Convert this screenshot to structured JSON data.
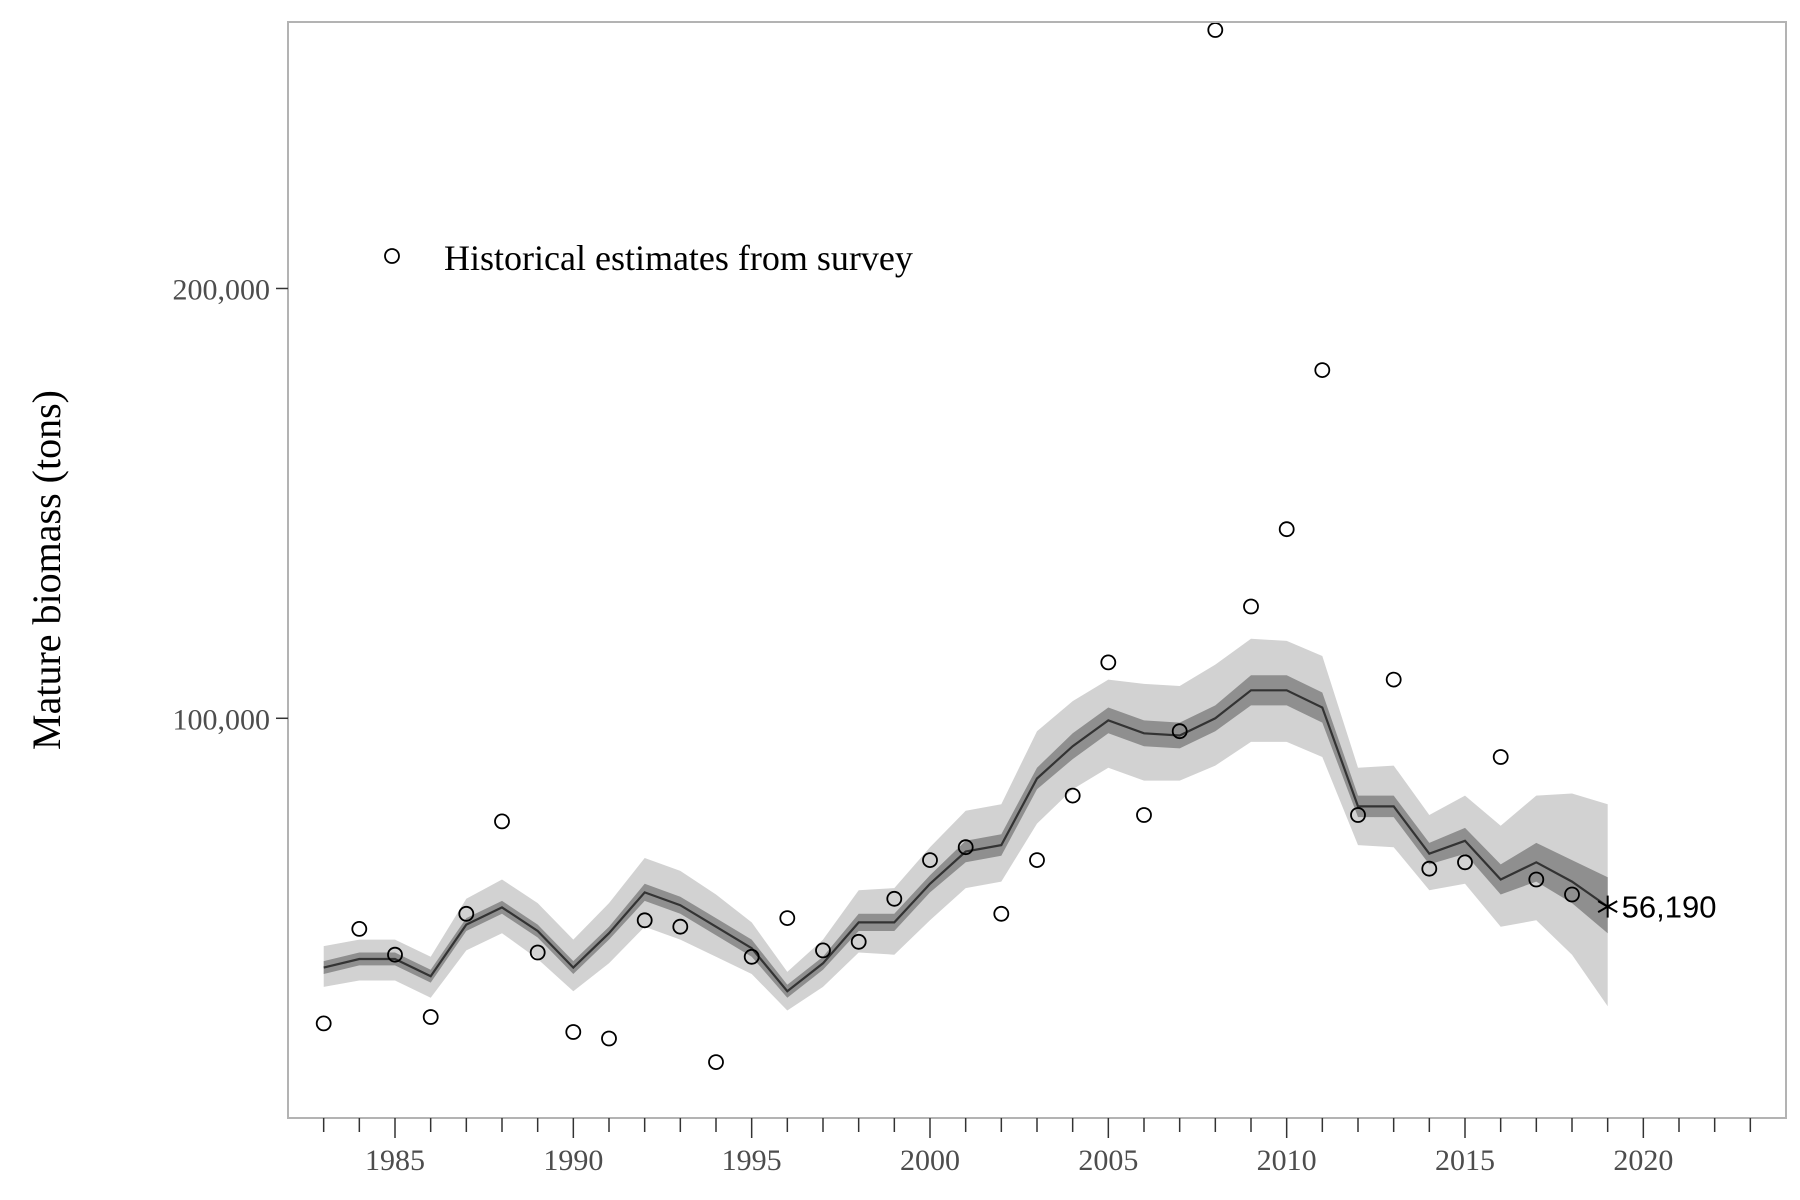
{
  "chart_data": {
    "type": "line",
    "title": "",
    "xlabel": "",
    "ylabel": "Mature biomass (tons)",
    "xlim": [
      1982,
      2024
    ],
    "ylim": [
      7000,
      262000
    ],
    "x_ticks": [
      1985,
      1990,
      1995,
      2000,
      2005,
      2010,
      2015,
      2020
    ],
    "x_tick_labels": [
      "1985",
      "1990",
      "1995",
      "2000",
      "2005",
      "2010",
      "2015",
      "2020"
    ],
    "y_ticks": [
      100000,
      200000
    ],
    "y_tick_labels": [
      "100,000",
      "200,000"
    ],
    "grid": false,
    "legend": {
      "position": "top-left",
      "entries": [
        "Historical estimates from survey"
      ]
    },
    "series": [
      {
        "name": "Historical estimates from survey",
        "kind": "scatter-open-circle",
        "x": [
          1983,
          1984,
          1985,
          1986,
          1987,
          1988,
          1989,
          1990,
          1991,
          1992,
          1993,
          1994,
          1995,
          1996,
          1997,
          1998,
          1999,
          2000,
          2001,
          2002,
          2003,
          2004,
          2005,
          2006,
          2007,
          2008,
          2009,
          2010,
          2011,
          2012,
          2013,
          2014,
          2015,
          2016,
          2017,
          2018
        ],
        "y": [
          29000,
          51000,
          45000,
          30500,
          54500,
          76000,
          45500,
          27000,
          25500,
          53000,
          51500,
          20000,
          44500,
          53500,
          46000,
          48000,
          58000,
          67000,
          70000,
          54500,
          67000,
          82000,
          113000,
          77500,
          97000,
          269000,
          126000,
          144000,
          181000,
          77500,
          109000,
          65000,
          66500,
          91000,
          62500,
          59000
        ]
      },
      {
        "name": "",
        "kind": "line",
        "x": [
          1983,
          1984,
          1985,
          1986,
          1987,
          1988,
          1989,
          1990,
          1991,
          1992,
          1993,
          1994,
          1995,
          1996,
          1997,
          1998,
          1999,
          2000,
          2001,
          2002,
          2003,
          2004,
          2005,
          2006,
          2007,
          2008,
          2009,
          2010,
          2011,
          2012,
          2013,
          2014,
          2015,
          2016,
          2017,
          2018,
          2019
        ],
        "y": [
          42000,
          44000,
          44000,
          40000,
          52000,
          56000,
          50500,
          42000,
          50000,
          59500,
          56500,
          51500,
          46500,
          36500,
          43000,
          52500,
          52500,
          61500,
          69000,
          70500,
          86000,
          93500,
          99500,
          96500,
          96000,
          100000,
          106500,
          106500,
          102500,
          79500,
          79500,
          68500,
          71500,
          62500,
          66500,
          62000,
          56190
        ]
      }
    ],
    "bands": [
      {
        "level": "outer",
        "color": "#d2d2d2",
        "x": [
          1983,
          1984,
          1985,
          1986,
          1987,
          1988,
          1989,
          1990,
          1991,
          1992,
          1993,
          1994,
          1995,
          1996,
          1997,
          1998,
          1999,
          2000,
          2001,
          2002,
          2003,
          2004,
          2005,
          2006,
          2007,
          2008,
          2009,
          2010,
          2011,
          2012,
          2013,
          2014,
          2015,
          2016,
          2017,
          2018,
          2019
        ],
        "lower": [
          37500,
          39000,
          39000,
          35000,
          46000,
          50000,
          44000,
          36500,
          43000,
          51500,
          48500,
          44500,
          40500,
          32000,
          37500,
          45500,
          45000,
          53000,
          60500,
          62000,
          75500,
          83500,
          88500,
          85500,
          85500,
          89000,
          94500,
          94500,
          91000,
          70500,
          70000,
          60000,
          61500,
          51500,
          53000,
          45000,
          33000
        ],
        "upper": [
          47000,
          48500,
          48500,
          44500,
          58000,
          62500,
          57000,
          48500,
          57000,
          67500,
          64500,
          59000,
          52500,
          41000,
          48500,
          60000,
          60500,
          70000,
          78500,
          80000,
          97000,
          104000,
          109000,
          108000,
          107500,
          112500,
          118500,
          118000,
          114500,
          88500,
          89000,
          77500,
          82000,
          75000,
          82000,
          82500,
          80000
        ]
      },
      {
        "level": "inner",
        "color": "#8f8f8f",
        "x": [
          1983,
          1984,
          1985,
          1986,
          1987,
          1988,
          1989,
          1990,
          1991,
          1992,
          1993,
          1994,
          1995,
          1996,
          1997,
          1998,
          1999,
          2000,
          2001,
          2002,
          2003,
          2004,
          2005,
          2006,
          2007,
          2008,
          2009,
          2010,
          2011,
          2012,
          2013,
          2014,
          2015,
          2016,
          2017,
          2018,
          2019
        ],
        "lower": [
          40500,
          42500,
          42500,
          38500,
          50500,
          54500,
          49000,
          40500,
          48500,
          57500,
          54500,
          49500,
          44500,
          35000,
          41500,
          50500,
          50500,
          59500,
          66500,
          68000,
          83500,
          90500,
          96500,
          93500,
          93000,
          97000,
          103000,
          103000,
          99000,
          77000,
          77000,
          66000,
          68500,
          59000,
          62000,
          57000,
          50000
        ],
        "upper": [
          43500,
          45500,
          45500,
          41500,
          53500,
          57500,
          52000,
          43500,
          51500,
          61500,
          58500,
          53500,
          48500,
          38000,
          44500,
          54500,
          54500,
          63500,
          71500,
          73000,
          88500,
          96500,
          102500,
          99500,
          99000,
          103000,
          110000,
          110000,
          106000,
          82000,
          82000,
          71000,
          74500,
          66000,
          71000,
          67000,
          63000
        ]
      }
    ],
    "end_point": {
      "x": 2019,
      "y": 56190,
      "label": "56,190"
    },
    "colors": {
      "line": "#333333",
      "points": "#000000",
      "frame": "#b3b3b3",
      "tick_text": "#4d4d4d"
    }
  }
}
